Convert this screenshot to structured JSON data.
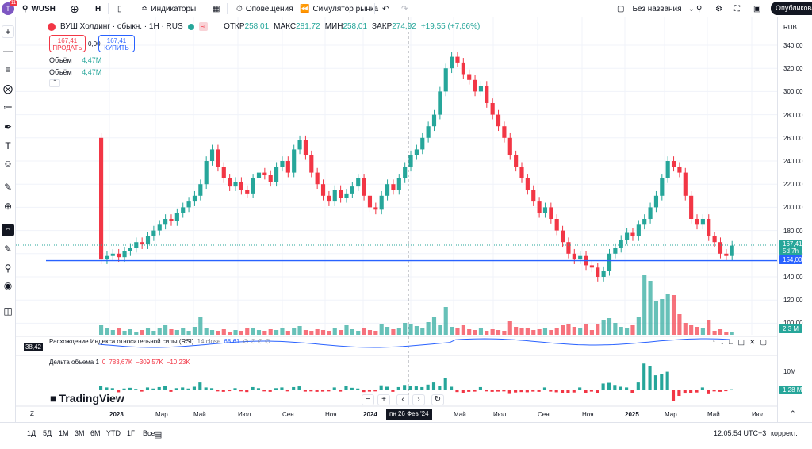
{
  "topbar": {
    "avatar": "T",
    "notif": "11",
    "symbol": "WUSH",
    "interval": "Н",
    "indicators": "Индикаторы",
    "alerts": "Оповещения",
    "replay": "Симулятор рынка",
    "layout_name": "Без названия",
    "publish": "Опубликовать"
  },
  "legend": {
    "title": "ВУШ Холдинг · обыкн. · 1H · RUS",
    "open_label": "ОТКР",
    "open": "258,01",
    "high_label": "МАКС",
    "high": "281,72",
    "low_label": "МИН",
    "low": "258,01",
    "close_label": "ЗАКР",
    "close": "274,92",
    "change": "+19,55 (+7,66%)",
    "sell_price": "167,41",
    "sell_label": "ПРОДАТЬ",
    "spread": "0,00",
    "buy_price": "167,41",
    "buy_label": "КУПИТЬ",
    "vol1_label": "Объём",
    "vol1": "4,47M",
    "vol2_label": "Объём",
    "vol2": "4,47M"
  },
  "yaxis": {
    "currency": "RUB",
    "ticks": [
      "340,00",
      "320,00",
      "300,00",
      "280,00",
      "260,00",
      "240,00",
      "220,00",
      "200,00",
      "180,00",
      "160,00",
      "140,00",
      "120,00",
      "100,00"
    ],
    "price_tag": "167,41",
    "price_tag_sub": "5d 7h",
    "line_tag": "154,00",
    "vol_tag": "2,3 M",
    "rsi_tag": "38,42",
    "delta_tick": "10M",
    "delta_tag": "1,28 M"
  },
  "xaxis": {
    "labels": [
      "2023",
      "Мар",
      "Май",
      "Июл",
      "Сен",
      "Ноя",
      "2024",
      "Мар",
      "Май",
      "Июл",
      "Сен",
      "Ноя",
      "2025",
      "Мар",
      "Май",
      "Июл"
    ],
    "cursor": "пн 26 Фев '24"
  },
  "rsi": {
    "title": "Расхождение Индекса относительной силы (RSI)",
    "params": "14 close",
    "value": "68,61",
    "flags": "∅ ∅ ∅ ∅"
  },
  "delta": {
    "title": "Дельта объема 1",
    "v0": "0",
    "v1": "783,67K",
    "v2": "−309,57K",
    "v3": "−10,23K"
  },
  "bottom": {
    "ranges": [
      "1Д",
      "5Д",
      "1М",
      "3М",
      "6М",
      "YTD",
      "1Г",
      "Все"
    ],
    "time": "12:05:54 UTC+3",
    "mode": "коррект."
  },
  "brand": "TradingView",
  "colors": {
    "up": "#26a69a",
    "down": "#f23645",
    "line": "#2962ff"
  },
  "chart_data": {
    "type": "candlestick",
    "hline": 154,
    "ylim": [
      90,
      350
    ],
    "closes": [
      155,
      158,
      160,
      157,
      162,
      165,
      170,
      168,
      175,
      180,
      185,
      190,
      188,
      195,
      200,
      205,
      210,
      220,
      240,
      250,
      235,
      225,
      218,
      222,
      215,
      212,
      225,
      230,
      228,
      222,
      235,
      240,
      230,
      250,
      258,
      245,
      230,
      220,
      210,
      205,
      215,
      208,
      212,
      218,
      225,
      210,
      200,
      198,
      210,
      220,
      215,
      225,
      235,
      245,
      250,
      260,
      270,
      280,
      300,
      320,
      330,
      325,
      315,
      310,
      300,
      305,
      290,
      280,
      270,
      260,
      245,
      235,
      225,
      215,
      205,
      195,
      200,
      190,
      180,
      170,
      160,
      155,
      158,
      150,
      148,
      140,
      145,
      160,
      165,
      172,
      178,
      175,
      185,
      190,
      200,
      210,
      225,
      240,
      235,
      230,
      210,
      190,
      185,
      190,
      175,
      170,
      160,
      158,
      167
    ],
    "volumes": [
      1.2,
      0.8,
      0.6,
      0.9,
      0.5,
      0.7,
      0.4,
      0.6,
      0.8,
      0.5,
      0.9,
      1.2,
      0.7,
      0.6,
      0.8,
      0.5,
      1.0,
      2.2,
      0.8,
      0.6,
      0.5,
      0.7,
      0.4,
      0.6,
      0.5,
      0.8,
      0.9,
      0.6,
      0.5,
      0.7,
      0.6,
      0.8,
      0.5,
      0.9,
      1.1,
      0.6,
      0.5,
      0.7,
      0.6,
      0.5,
      0.8,
      0.6,
      1.2,
      0.7,
      0.5,
      0.8,
      0.6,
      0.5,
      1.4,
      1.0,
      0.7,
      0.9,
      1.5,
      1.3,
      1.1,
      0.9,
      1.6,
      2.2,
      1.2,
      3.5,
      1.0,
      0.8,
      1.2,
      0.7,
      0.6,
      0.9,
      0.5,
      0.7,
      0.6,
      0.5,
      1.7,
      1.0,
      0.8,
      0.9,
      0.6,
      0.7,
      0.8,
      0.6,
      0.9,
      1.2,
      1.4,
      1.0,
      0.8,
      1.4,
      0.6,
      1.3,
      1.9,
      2.1,
      1.5,
      1.0,
      0.8,
      1.2,
      2.2,
      7.5,
      6.8,
      4.2,
      4.5,
      5.2,
      5.0,
      2.6,
      1.5,
      1.2,
      1.0,
      0.8,
      1.8,
      0.5,
      0.7,
      0.4,
      0.3
    ]
  }
}
